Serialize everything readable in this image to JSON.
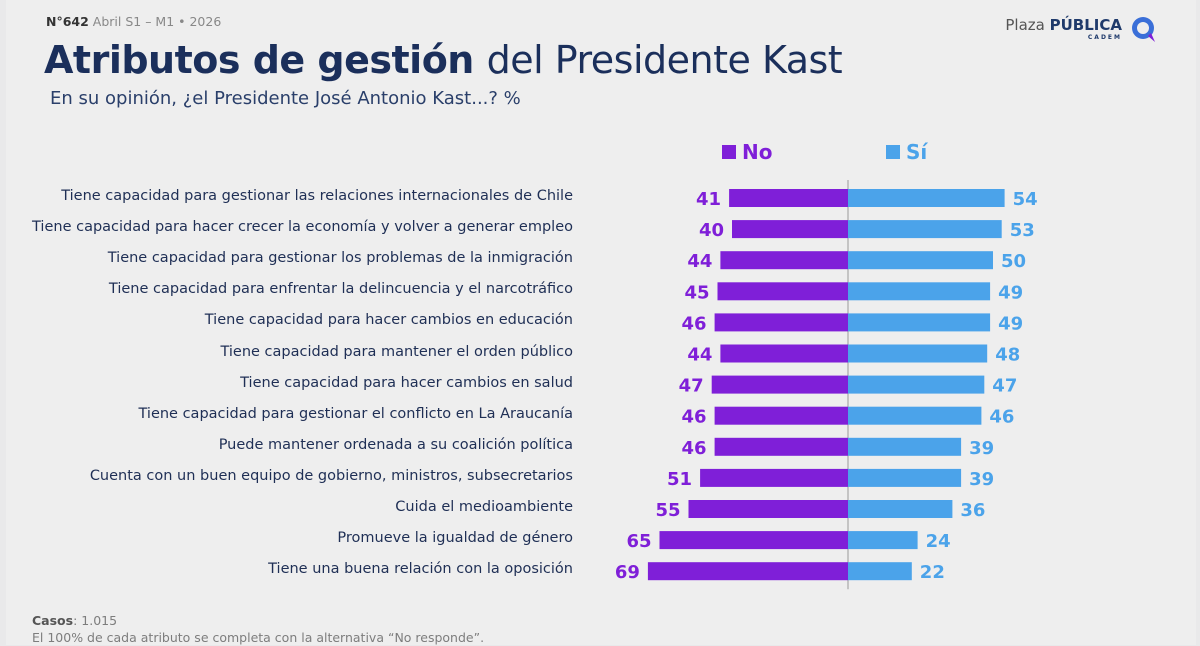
{
  "header": {
    "issue_number": "N°642",
    "issue_date": "Abril S1 – M1 • 2026"
  },
  "logo": {
    "brand_light": "Plaza",
    "brand_bold": "PÚBLICA",
    "sub": "CADEM"
  },
  "title": {
    "bold": "Atributos de gestión",
    "light": "del Presidente Kast"
  },
  "subtitle": "En su opinión, ¿el Presidente José Antonio Kast...? %",
  "colors": {
    "no": "#7f1fd8",
    "si": "#4ba3ea",
    "text": "#1b2f5b"
  },
  "chart_data": {
    "type": "bar",
    "orientation": "horizontal-diverging",
    "unit": "%",
    "legend": [
      "No",
      "Sí"
    ],
    "categories": [
      "Tiene capacidad para gestionar las relaciones internacionales de Chile",
      "Tiene capacidad para hacer crecer la economía y volver a generar empleo",
      "Tiene capacidad para gestionar los problemas de la inmigración",
      "Tiene capacidad para enfrentar la delincuencia y el narcotráfico",
      "Tiene capacidad para hacer cambios en educación",
      "Tiene capacidad para mantener el orden público",
      "Tiene capacidad para hacer cambios en salud",
      "Tiene capacidad para gestionar el conflicto en La Araucanía",
      "Puede mantener ordenada a su coalición política",
      "Cuenta con un buen equipo de gobierno, ministros, subsecretarios",
      "Cuida el medioambiente",
      "Promueve la igualdad de género",
      "Tiene una buena relación con la oposición"
    ],
    "series": [
      {
        "name": "No",
        "values": [
          41,
          40,
          44,
          45,
          46,
          44,
          47,
          46,
          46,
          51,
          55,
          65,
          69
        ]
      },
      {
        "name": "Sí",
        "values": [
          54,
          53,
          50,
          49,
          49,
          48,
          47,
          46,
          39,
          39,
          36,
          24,
          22
        ]
      }
    ]
  },
  "footer": {
    "cases_label": "Casos",
    "cases_value": ": 1.015",
    "note": "El 100% de cada atributo se completa con la alternativa “No responde”."
  }
}
